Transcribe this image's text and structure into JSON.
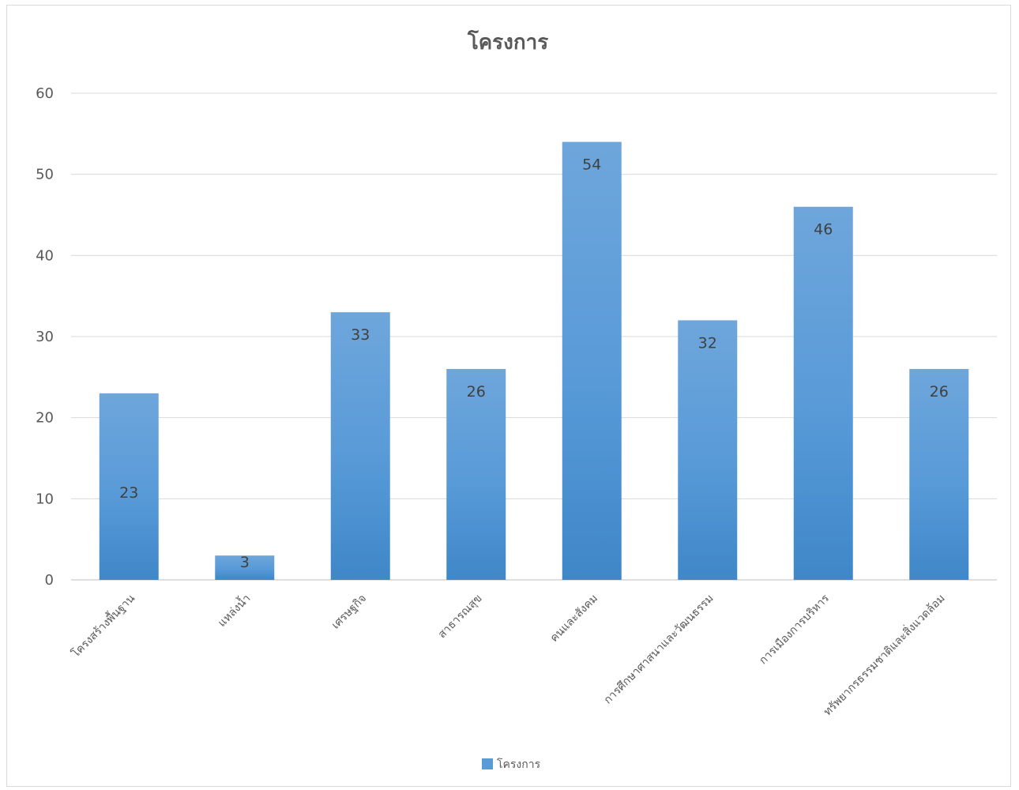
{
  "chart_data": {
    "type": "bar",
    "title": "โครงการ",
    "xlabel": "",
    "ylabel": "",
    "ylim": [
      0,
      60
    ],
    "yticks": [
      0,
      10,
      20,
      30,
      40,
      50,
      60
    ],
    "grid": true,
    "legend": "bottom",
    "categories": [
      "โครงสร้างพื้นฐาน",
      "แหล่งน้ำ",
      "เศรษฐกิจ",
      "สาธารณสุข",
      "คนและสังคม",
      "การศึกษาศาสนาและวัฒนธรรม",
      "การเมืองการบริหาร",
      "ทรัพยากรธรรมชาติและสิ่งแวดล้อม"
    ],
    "series": [
      {
        "name": "โครงการ",
        "values": [
          23,
          3,
          33,
          26,
          54,
          32,
          46,
          26
        ],
        "color": "#5b9bd5"
      }
    ]
  }
}
